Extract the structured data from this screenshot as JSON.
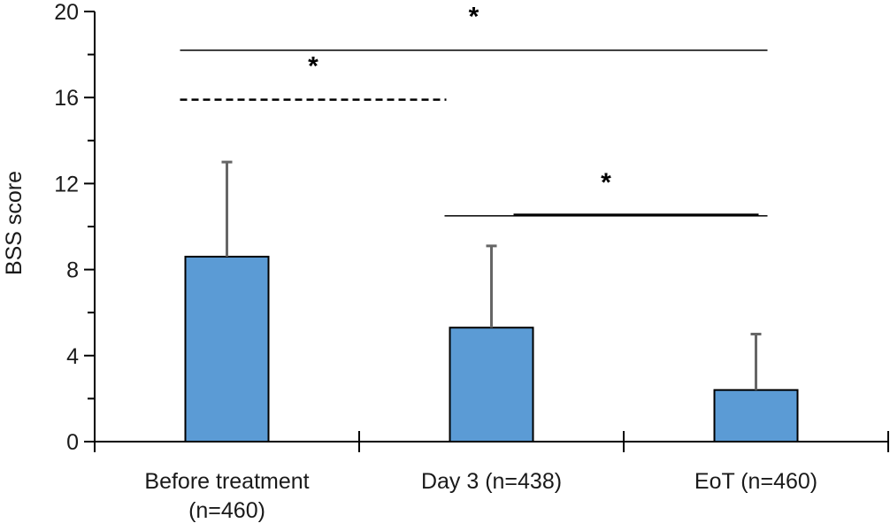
{
  "chart_data": {
    "type": "bar",
    "ylabel": "BSS score",
    "xlabel": "",
    "ylim": [
      0,
      20
    ],
    "yticks": [
      0,
      4,
      8,
      12,
      16,
      20
    ],
    "categories": [
      [
        "Before treatment",
        "(n=460)"
      ],
      [
        "Day 3 (n=438)"
      ],
      [
        "EoT (n=460)"
      ]
    ],
    "values": [
      8.6,
      5.3,
      2.4
    ],
    "errors": [
      4.4,
      3.8,
      2.6
    ],
    "colors": {
      "bar": "#5b9bd5",
      "error": "#666666",
      "axis": "#000000"
    },
    "significance": [
      {
        "from": 0,
        "to": 2,
        "y": 18.2,
        "label": "*",
        "style": "solid"
      },
      {
        "from": 0,
        "to": 1,
        "y": 15.9,
        "label": "*",
        "style": "dashed"
      },
      {
        "from": 1,
        "to": 2,
        "y": 10.5,
        "label": "*",
        "style": "solid"
      }
    ]
  }
}
